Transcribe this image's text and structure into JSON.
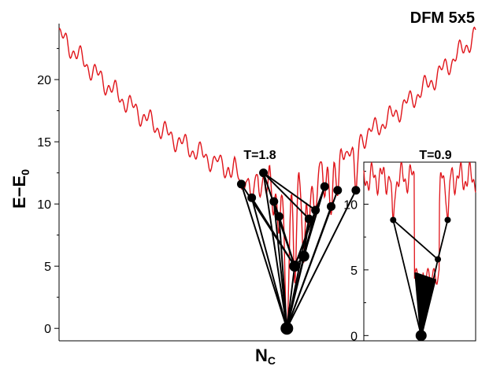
{
  "title": "DFM 5x5",
  "chart_data": [
    {
      "type": "line",
      "ylabel": "E−E0",
      "ylabel_main": "E−E",
      "ylabel_sub": "0",
      "xlabel": "N",
      "xlabel_sub": "C",
      "ylim": [
        -1,
        24.5
      ],
      "yticks": [
        0,
        5,
        10,
        15,
        20
      ],
      "x_ticks_shown": false,
      "grid": false,
      "annotation": "T=1.8",
      "colors": {
        "landscape": "#e0141a",
        "transitions": "#000000"
      },
      "minima": [
        {
          "id": 0,
          "x": 0.7,
          "y": 11.6
        },
        {
          "id": 1,
          "x": 0.74,
          "y": 10.5
        },
        {
          "id": 2,
          "x": 0.785,
          "y": 12.5
        },
        {
          "id": 3,
          "x": 0.825,
          "y": 10.2
        },
        {
          "id": 4,
          "x": 0.845,
          "y": 9.0
        },
        {
          "id": 5,
          "x": 0.875,
          "y": 0.0
        },
        {
          "id": 6,
          "x": 0.905,
          "y": 5.0
        },
        {
          "id": 7,
          "x": 0.94,
          "y": 5.8
        },
        {
          "id": 8,
          "x": 0.96,
          "y": 8.8
        },
        {
          "id": 9,
          "x": 0.985,
          "y": 9.5
        },
        {
          "id": 10,
          "x": 1.02,
          "y": 11.4
        },
        {
          "id": 11,
          "x": 1.045,
          "y": 9.8
        },
        {
          "id": 12,
          "x": 1.07,
          "y": 11.1
        },
        {
          "id": 13,
          "x": 1.14,
          "y": 11.1
        }
      ],
      "transitions": [
        [
          0,
          5
        ],
        [
          1,
          5
        ],
        [
          2,
          5
        ],
        [
          3,
          5
        ],
        [
          4,
          5
        ],
        [
          6,
          5
        ],
        [
          7,
          5
        ],
        [
          8,
          5
        ],
        [
          9,
          5
        ],
        [
          11,
          5
        ],
        [
          12,
          5
        ],
        [
          13,
          5
        ],
        [
          0,
          6
        ],
        [
          1,
          6
        ],
        [
          2,
          6
        ],
        [
          3,
          6
        ],
        [
          4,
          6
        ],
        [
          2,
          9
        ],
        [
          2,
          8
        ],
        [
          10,
          6
        ],
        [
          9,
          6
        ],
        [
          8,
          7
        ],
        [
          9,
          7
        ],
        [
          10,
          7
        ],
        [
          6,
          7
        ],
        [
          3,
          4
        ]
      ]
    },
    {
      "type": "line",
      "annotation": "T=0.9",
      "ylim": [
        -0.4,
        13.2
      ],
      "yticks": [
        0,
        5,
        10
      ],
      "x_ticks_shown": false,
      "grid": false,
      "minima": [
        {
          "id": 0,
          "x": 1.305,
          "y": 8.8
        },
        {
          "id": 1,
          "x": 1.405,
          "y": 0.0
        },
        {
          "id": 2,
          "x": 1.465,
          "y": 5.8
        },
        {
          "id": 3,
          "x": 1.5,
          "y": 8.8
        }
      ],
      "transitions": [
        [
          0,
          2
        ],
        [
          3,
          2
        ],
        [
          0,
          1
        ],
        [
          2,
          1
        ]
      ]
    }
  ]
}
